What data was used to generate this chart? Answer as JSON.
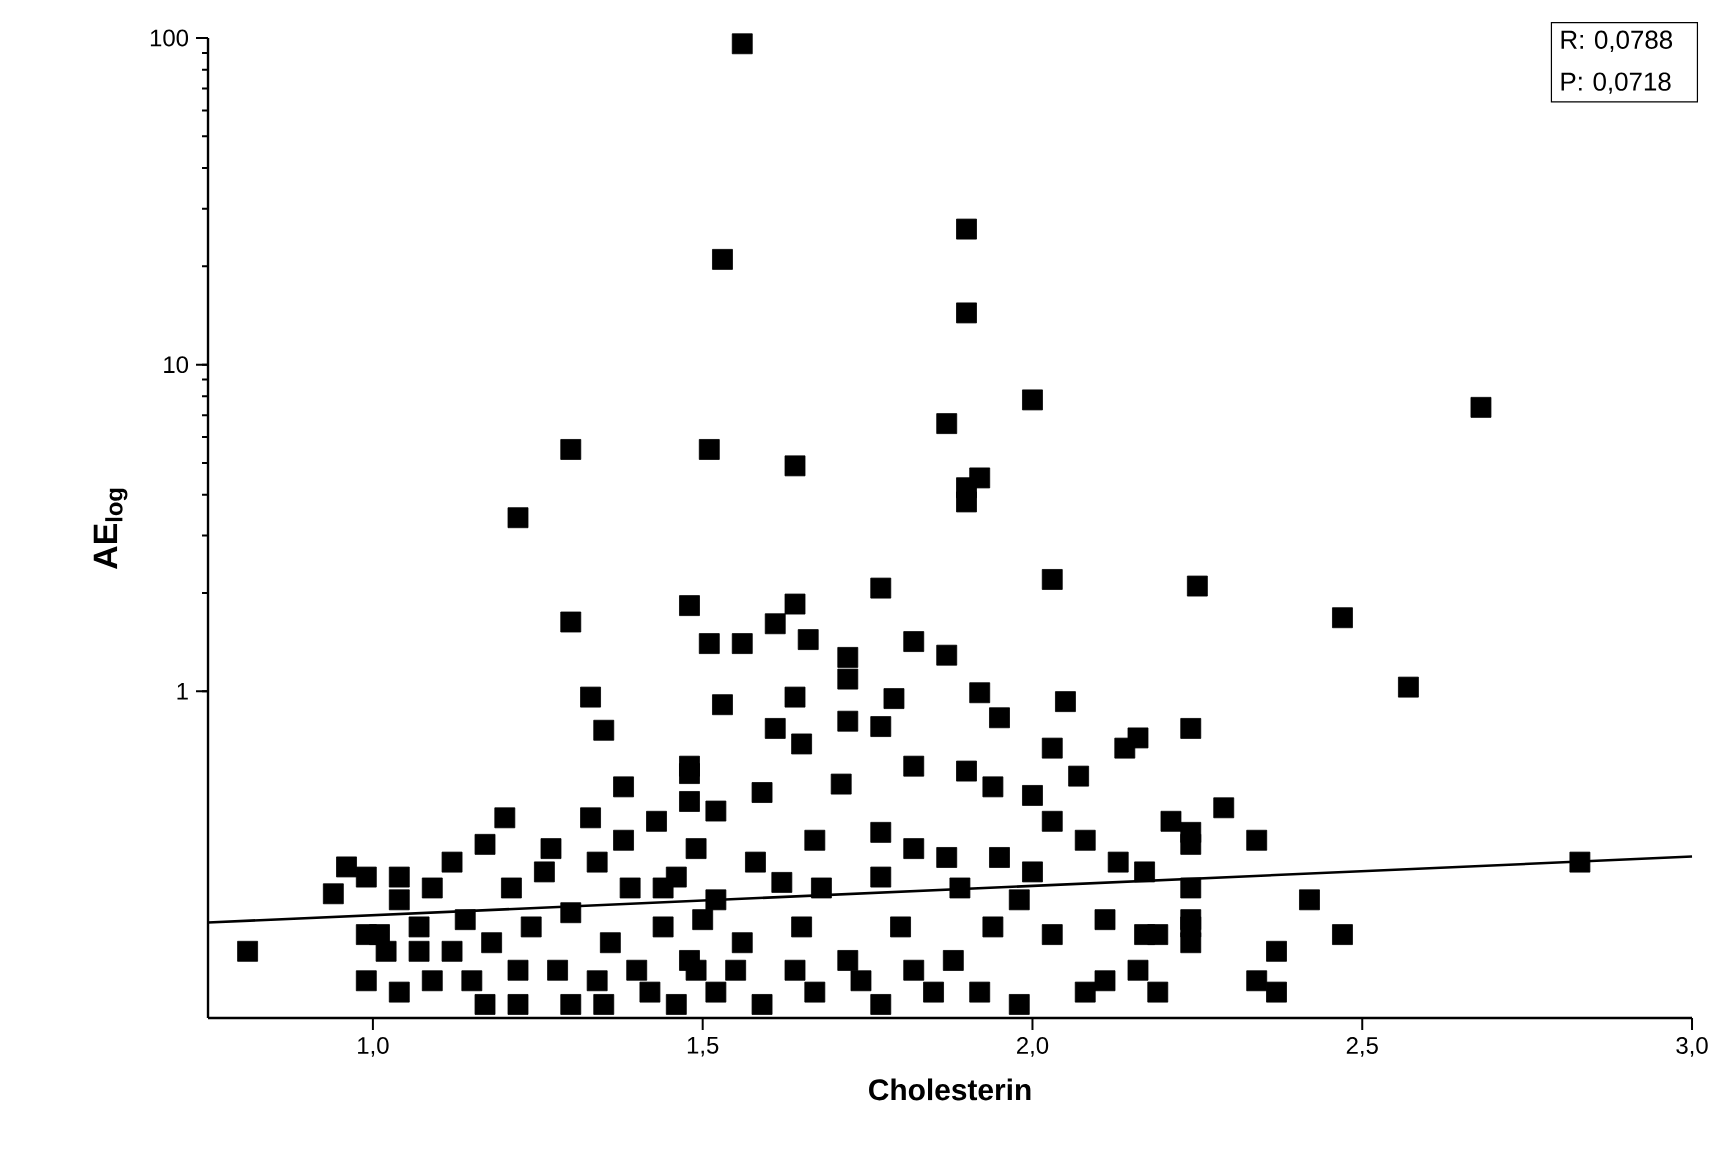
{
  "chart_data": {
    "type": "scatter",
    "xlabel": "Cholesterin",
    "ylabel": "**AE$_{log}$**",
    "xlim": [
      0.75,
      3.0
    ],
    "ylim": [
      0.1,
      100
    ],
    "log": "y",
    "marker": "square",
    "grid": false,
    "xticks": [
      {
        "value": 1.0,
        "label": "1,0"
      },
      {
        "value": 1.5,
        "label": "1,5"
      },
      {
        "value": 2.0,
        "label": "2,0"
      },
      {
        "value": 2.5,
        "label": "2,5"
      },
      {
        "value": 3.0,
        "label": "3,0"
      }
    ],
    "yticks": [
      1,
      10,
      100
    ],
    "annotations": [
      "R: 0,0788",
      "P: 0,0718"
    ],
    "series": [
      {
        "color": "#000000",
        "x": [
          1.56,
          1.53,
          1.9,
          1.9,
          1.3,
          1.51,
          1.64,
          1.87,
          2.0,
          2.68,
          1.22,
          1.92,
          1.9,
          1.9,
          2.03,
          2.25,
          1.77,
          2.47,
          1.3,
          1.48,
          1.64,
          1.61,
          1.51,
          1.56,
          1.66,
          1.82,
          1.87,
          1.72,
          1.72,
          2.57,
          1.33,
          1.53,
          1.64,
          1.79,
          1.92,
          1.95,
          2.05,
          1.35,
          1.61,
          1.72,
          1.77,
          1.65,
          1.82,
          1.9,
          2.03,
          2.14,
          2.16,
          2.24,
          2.07,
          1.48,
          1.59,
          1.52,
          1.71,
          1.77,
          1.94,
          2.0,
          2.21,
          2.03,
          2.08,
          2.13,
          2.17,
          2.0,
          1.95,
          1.87,
          1.82,
          1.67,
          1.58,
          1.49,
          2.24,
          2.29,
          2.24,
          2.34,
          2.83,
          2.24,
          2.42,
          2.24,
          2.24,
          2.47,
          2.37,
          2.34,
          2.37,
          2.19,
          2.19,
          2.03,
          2.11,
          2.17,
          2.24,
          2.11,
          2.16,
          2.08,
          1.98,
          1.92,
          1.85,
          1.77,
          1.67,
          1.59,
          1.52,
          1.56,
          1.65,
          1.72,
          1.8,
          1.88,
          1.94,
          1.98,
          1.89,
          1.77,
          1.68,
          1.62,
          1.52,
          1.48,
          1.55,
          1.64,
          1.74,
          1.82,
          1.48,
          1.38,
          1.48,
          1.2,
          1.33,
          1.43,
          1.17,
          1.27,
          1.38,
          0.96,
          0.99,
          0.94,
          1.12,
          1.04,
          0.81,
          0.99,
          1.04,
          1.17,
          1.22,
          1.3,
          1.35,
          1.46,
          1.01,
          1.04,
          1.09,
          1.14,
          1.07,
          1.12,
          1.18,
          1.24,
          1.26,
          1.34,
          1.3,
          1.36,
          1.4,
          1.44,
          1.46,
          1.22,
          1.28,
          1.15,
          1.09,
          1.34,
          1.42,
          1.49,
          1.5,
          1.44,
          1.39,
          1.21,
          1.07,
          1.02,
          0.99
        ],
        "values": [
          96,
          21,
          26,
          14.4,
          5.5,
          5.5,
          4.9,
          6.6,
          7.8,
          7.4,
          3.4,
          4.5,
          3.8,
          4.2,
          2.2,
          2.1,
          2.07,
          1.68,
          1.63,
          1.83,
          1.85,
          1.61,
          1.4,
          1.4,
          1.44,
          1.42,
          1.29,
          1.27,
          1.09,
          1.03,
          0.96,
          0.91,
          0.96,
          0.95,
          0.99,
          0.83,
          0.93,
          0.76,
          0.77,
          0.81,
          0.78,
          0.69,
          0.59,
          0.57,
          0.67,
          0.67,
          0.72,
          0.77,
          0.55,
          0.56,
          0.49,
          0.43,
          0.52,
          0.37,
          0.51,
          0.48,
          0.4,
          0.4,
          0.35,
          0.3,
          0.28,
          0.28,
          0.31,
          0.31,
          0.33,
          0.35,
          0.3,
          0.33,
          0.37,
          0.44,
          0.34,
          0.35,
          0.3,
          0.25,
          0.23,
          0.2,
          0.17,
          0.18,
          0.16,
          0.13,
          0.12,
          0.12,
          0.18,
          0.18,
          0.2,
          0.18,
          0.19,
          0.13,
          0.14,
          0.12,
          0.11,
          0.12,
          0.12,
          0.11,
          0.12,
          0.11,
          0.12,
          0.17,
          0.19,
          0.15,
          0.19,
          0.15,
          0.19,
          0.23,
          0.25,
          0.27,
          0.25,
          0.26,
          0.23,
          0.15,
          0.14,
          0.14,
          0.13,
          0.14,
          0.59,
          0.51,
          0.46,
          0.41,
          0.41,
          0.4,
          0.34,
          0.33,
          0.35,
          0.29,
          0.27,
          0.24,
          0.3,
          0.27,
          0.16,
          0.13,
          0.12,
          0.11,
          0.11,
          0.11,
          0.11,
          0.11,
          0.18,
          0.23,
          0.25,
          0.2,
          0.19,
          0.16,
          0.17,
          0.19,
          0.28,
          0.3,
          0.21,
          0.17,
          0.14,
          0.19,
          0.27,
          0.14,
          0.14,
          0.13,
          0.13,
          0.13,
          0.12,
          0.14,
          0.2,
          0.25,
          0.25,
          0.25,
          0.16,
          0.16,
          0.18
        ]
      },
      {
        "type": "line",
        "color": "#000000",
        "marker": "none",
        "line_style": "solid",
        "x": [
          0.75,
          3.0
        ],
        "values": [
          0.196,
          0.312
        ]
      }
    ]
  }
}
